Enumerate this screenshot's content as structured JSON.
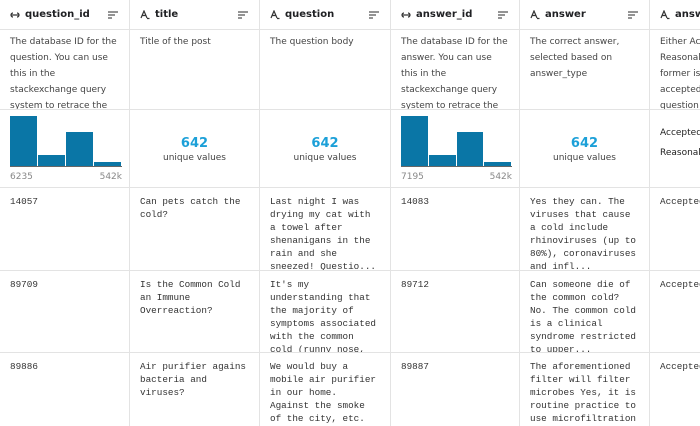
{
  "columns": [
    {
      "name": "question_id",
      "icon": "key",
      "description": "The database ID for the question. You can use this in the stackexchange query system to retrace the original question.",
      "stats": {
        "kind": "histogram",
        "bars": [
          100,
          22,
          68,
          8
        ],
        "min": "6235",
        "max": "542k"
      }
    },
    {
      "name": "title",
      "icon": "text",
      "description": "Title of the post",
      "stats": {
        "kind": "unique",
        "count": 642,
        "label": "unique values"
      }
    },
    {
      "name": "question",
      "icon": "text",
      "description": "The question body",
      "stats": {
        "kind": "unique",
        "count": 642,
        "label": "unique values"
      }
    },
    {
      "name": "answer_id",
      "icon": "key",
      "description": "The database ID for the answer. You can use this in the stackexchange query system to retrace the original answer.",
      "stats": {
        "kind": "histogram",
        "bars": [
          100,
          22,
          68,
          8
        ],
        "min": "7195",
        "max": "542k"
      }
    },
    {
      "name": "answer",
      "icon": "text",
      "description": "The correct answer, selected based on answer_type",
      "stats": {
        "kind": "unique",
        "count": 642,
        "label": "unique values"
      }
    },
    {
      "name": "answer_",
      "icon": "text",
      "description": [
        "Either Acce",
        "Reasonable",
        "former is d",
        "accepted b",
        "question an"
      ],
      "stats": {
        "kind": "list",
        "items": [
          "Accepted",
          "Reasonable"
        ]
      }
    }
  ],
  "rows": [
    [
      "14057",
      "Can pets catch the cold?",
      "Last night I was drying my cat with a towel after shenanigans in the rain and she sneezed! Questio...",
      "14083",
      "Yes they can. The viruses that cause a cold include rhinoviruses (up to 80%), coronaviruses and infl...",
      "Accepted"
    ],
    [
      "89709",
      "Is the Common Cold an Immune Overreaction?",
      "It's my understanding that the majority of symptoms associated with the common cold (runny nose, inf...",
      "89712",
      "Can someone die of the common cold? No. The common cold is a clinical syndrome restricted to upper...",
      "Accepted"
    ],
    [
      "89886",
      "Air purifier agains bacteria and viruses?",
      "We would buy a mobile air purifier in our home. Against the smoke of the city, etc. It would",
      "89887",
      "The aforementioned filter will filter microbes Yes, it is routine practice to use microfiltration",
      "Accepted"
    ]
  ]
}
